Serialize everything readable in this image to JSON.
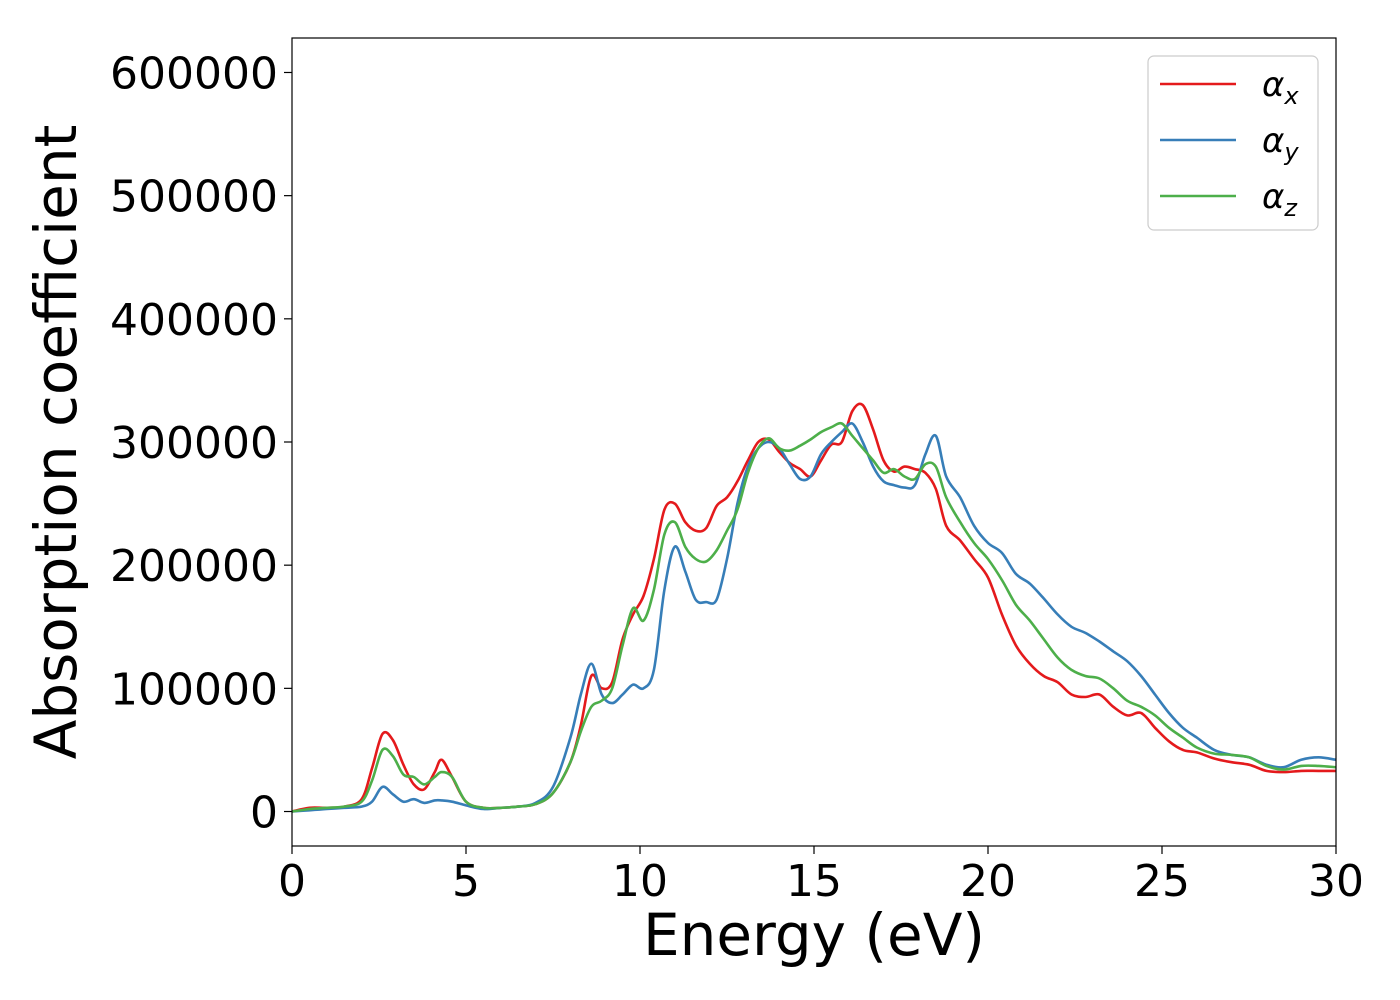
{
  "chart_data": {
    "type": "line",
    "xlabel": "Energy (eV)",
    "ylabel": "Absorption coefficient",
    "xlim": [
      0,
      30
    ],
    "ylim": [
      -28000,
      628000
    ],
    "xticks": [
      0,
      5,
      10,
      15,
      20,
      25,
      30
    ],
    "xtick_labels": [
      "0",
      "5",
      "10",
      "15",
      "20",
      "25",
      "30"
    ],
    "yticks": [
      0,
      100000,
      200000,
      300000,
      400000,
      500000,
      600000
    ],
    "ytick_labels": [
      "0",
      "100000",
      "200000",
      "300000",
      "400000",
      "500000",
      "600000"
    ],
    "grid": false,
    "legend_position": "top-right",
    "series": [
      {
        "name": "α",
        "subscript": "x",
        "color": "#e41a1c",
        "x": [
          0,
          0.5,
          1,
          1.5,
          2,
          2.3,
          2.6,
          2.9,
          3.2,
          3.5,
          3.8,
          4.1,
          4.3,
          4.6,
          5,
          5.5,
          6,
          6.5,
          7,
          7.5,
          8,
          8.3,
          8.6,
          8.9,
          9.2,
          9.5,
          9.8,
          10.1,
          10.4,
          10.7,
          11,
          11.3,
          11.6,
          11.9,
          12.2,
          12.5,
          12.8,
          13.1,
          13.4,
          13.7,
          14,
          14.3,
          14.6,
          14.9,
          15.2,
          15.5,
          15.8,
          16.1,
          16.4,
          16.7,
          17,
          17.3,
          17.6,
          17.9,
          18.2,
          18.5,
          18.8,
          19.2,
          19.6,
          20,
          20.4,
          20.8,
          21.2,
          21.6,
          22,
          22.4,
          22.8,
          23.2,
          23.6,
          24,
          24.4,
          24.8,
          25.2,
          25.6,
          26,
          26.5,
          27,
          27.5,
          28,
          28.5,
          29,
          29.5,
          30
        ],
        "y": [
          0,
          3000,
          3000,
          4000,
          10000,
          35000,
          63000,
          58000,
          38000,
          22000,
          18000,
          32000,
          42000,
          28000,
          8000,
          3000,
          3000,
          4000,
          6000,
          15000,
          40000,
          70000,
          110000,
          100000,
          105000,
          140000,
          160000,
          175000,
          205000,
          245000,
          250000,
          235000,
          228000,
          230000,
          248000,
          255000,
          268000,
          285000,
          300000,
          302000,
          292000,
          283000,
          278000,
          272000,
          285000,
          298000,
          300000,
          325000,
          330000,
          310000,
          285000,
          276000,
          280000,
          278000,
          275000,
          262000,
          232000,
          220000,
          205000,
          190000,
          160000,
          135000,
          120000,
          110000,
          105000,
          95000,
          93000,
          95000,
          85000,
          78000,
          80000,
          68000,
          57000,
          50000,
          48000,
          43000,
          40000,
          38000,
          33000,
          32000,
          33000,
          33000,
          33000
        ]
      },
      {
        "name": "α",
        "subscript": "y",
        "color": "#377eb8",
        "x": [
          0,
          0.5,
          1,
          1.5,
          2,
          2.3,
          2.6,
          2.9,
          3.2,
          3.5,
          3.8,
          4.1,
          4.3,
          4.6,
          5,
          5.5,
          6,
          6.5,
          7,
          7.5,
          8,
          8.3,
          8.6,
          8.9,
          9.2,
          9.5,
          9.8,
          10.1,
          10.4,
          10.7,
          11,
          11.3,
          11.6,
          11.9,
          12.2,
          12.5,
          12.8,
          13.1,
          13.4,
          13.7,
          14,
          14.3,
          14.6,
          14.9,
          15.2,
          15.5,
          15.8,
          16.1,
          16.4,
          16.7,
          17,
          17.3,
          17.6,
          17.9,
          18.2,
          18.5,
          18.8,
          19.2,
          19.6,
          20,
          20.4,
          20.8,
          21.2,
          21.6,
          22,
          22.4,
          22.8,
          23.2,
          23.6,
          24,
          24.4,
          24.8,
          25.2,
          25.6,
          26,
          26.5,
          27,
          27.5,
          28,
          28.5,
          29,
          29.5,
          30
        ],
        "y": [
          0,
          1000,
          2000,
          3000,
          4000,
          8000,
          20000,
          14000,
          8000,
          10000,
          7000,
          9000,
          9000,
          8000,
          5000,
          2000,
          3000,
          4000,
          7000,
          20000,
          60000,
          95000,
          120000,
          95000,
          88000,
          95000,
          103000,
          100000,
          115000,
          180000,
          215000,
          195000,
          172000,
          170000,
          172000,
          205000,
          250000,
          280000,
          295000,
          300000,
          295000,
          282000,
          270000,
          272000,
          290000,
          300000,
          308000,
          315000,
          300000,
          280000,
          268000,
          265000,
          263000,
          265000,
          290000,
          305000,
          272000,
          255000,
          232000,
          218000,
          210000,
          193000,
          185000,
          173000,
          160000,
          150000,
          145000,
          138000,
          130000,
          122000,
          110000,
          95000,
          80000,
          68000,
          60000,
          50000,
          46000,
          44000,
          38000,
          36000,
          42000,
          44000,
          42000
        ]
      },
      {
        "name": "α",
        "subscript": "z",
        "color": "#4daf4a",
        "x": [
          0,
          0.5,
          1,
          1.5,
          2,
          2.3,
          2.6,
          2.9,
          3.2,
          3.5,
          3.8,
          4.1,
          4.3,
          4.6,
          5,
          5.5,
          6,
          6.5,
          7,
          7.5,
          8,
          8.3,
          8.6,
          8.9,
          9.2,
          9.5,
          9.8,
          10.1,
          10.4,
          10.7,
          11,
          11.3,
          11.6,
          11.9,
          12.2,
          12.5,
          12.8,
          13.1,
          13.4,
          13.7,
          14,
          14.3,
          14.6,
          14.9,
          15.2,
          15.5,
          15.8,
          16.1,
          16.4,
          16.7,
          17,
          17.3,
          17.6,
          17.9,
          18.2,
          18.5,
          18.8,
          19.2,
          19.6,
          20,
          20.4,
          20.8,
          21.2,
          21.6,
          22,
          22.4,
          22.8,
          23.2,
          23.6,
          24,
          24.4,
          24.8,
          25.2,
          25.6,
          26,
          26.5,
          27,
          27.5,
          28,
          28.5,
          29,
          29.5,
          30
        ],
        "y": [
          0,
          2000,
          3000,
          4000,
          8000,
          25000,
          50000,
          45000,
          30000,
          28000,
          22000,
          28000,
          32000,
          28000,
          8000,
          3000,
          3000,
          4000,
          6000,
          15000,
          40000,
          65000,
          85000,
          90000,
          100000,
          135000,
          165000,
          155000,
          180000,
          225000,
          235000,
          215000,
          205000,
          203000,
          212000,
          228000,
          245000,
          275000,
          295000,
          303000,
          295000,
          293000,
          297000,
          302000,
          308000,
          312000,
          315000,
          305000,
          295000,
          285000,
          275000,
          278000,
          272000,
          270000,
          282000,
          280000,
          255000,
          235000,
          218000,
          205000,
          188000,
          168000,
          155000,
          140000,
          125000,
          115000,
          110000,
          108000,
          100000,
          90000,
          85000,
          78000,
          68000,
          60000,
          52000,
          47000,
          46000,
          44000,
          37000,
          34000,
          37000,
          37000,
          36000
        ]
      }
    ]
  }
}
